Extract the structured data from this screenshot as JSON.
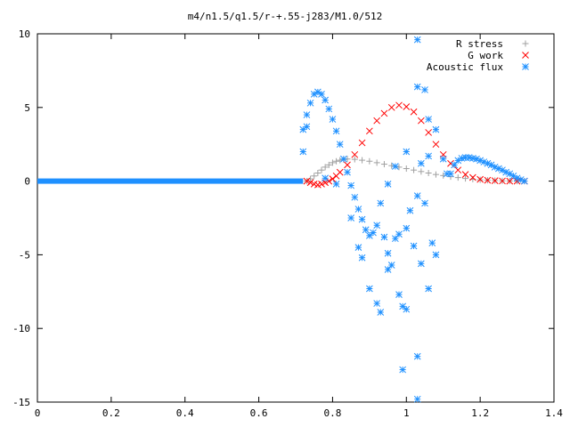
{
  "chart_data": {
    "type": "scatter",
    "title": "m4/n1.5/q1.5/r-+.55-j283/M1.0/512",
    "xlim": [
      0,
      1.4
    ],
    "ylim": [
      -15,
      10
    ],
    "x_ticks": [
      "0",
      "0.2",
      "0.4",
      "0.6",
      "0.8",
      "1",
      "1.2",
      "1.4"
    ],
    "y_ticks": [
      "10",
      "5",
      "0",
      "-5",
      "-10",
      "-15"
    ],
    "legend_position": "top-right",
    "series": [
      {
        "name": "R stress",
        "marker": "plus",
        "color": "#a0a0a0",
        "points": [
          [
            0.73,
            0.0
          ],
          [
            0.74,
            0.15
          ],
          [
            0.75,
            0.35
          ],
          [
            0.76,
            0.55
          ],
          [
            0.77,
            0.75
          ],
          [
            0.78,
            0.95
          ],
          [
            0.79,
            1.1
          ],
          [
            0.8,
            1.25
          ],
          [
            0.81,
            1.35
          ],
          [
            0.82,
            1.42
          ],
          [
            0.83,
            1.47
          ],
          [
            0.84,
            1.5
          ],
          [
            0.86,
            1.48
          ],
          [
            0.88,
            1.42
          ],
          [
            0.9,
            1.35
          ],
          [
            0.92,
            1.25
          ],
          [
            0.94,
            1.15
          ],
          [
            0.96,
            1.05
          ],
          [
            0.98,
            0.95
          ],
          [
            1.0,
            0.85
          ],
          [
            1.02,
            0.75
          ],
          [
            1.04,
            0.65
          ],
          [
            1.06,
            0.55
          ],
          [
            1.08,
            0.45
          ],
          [
            1.1,
            0.38
          ],
          [
            1.12,
            0.3
          ],
          [
            1.14,
            0.24
          ],
          [
            1.16,
            0.18
          ],
          [
            1.18,
            0.13
          ],
          [
            1.2,
            0.09
          ],
          [
            1.22,
            0.06
          ],
          [
            1.24,
            0.04
          ],
          [
            1.26,
            0.02
          ],
          [
            1.28,
            0.01
          ],
          [
            1.3,
            0.0
          ],
          [
            1.32,
            0.0
          ]
        ]
      },
      {
        "name": "G work",
        "marker": "cross",
        "color": "#ff0000",
        "points": [
          [
            0.73,
            0.0
          ],
          [
            0.74,
            -0.1
          ],
          [
            0.75,
            -0.2
          ],
          [
            0.76,
            -0.25
          ],
          [
            0.77,
            -0.2
          ],
          [
            0.78,
            -0.1
          ],
          [
            0.79,
            0.0
          ],
          [
            0.8,
            0.15
          ],
          [
            0.81,
            0.35
          ],
          [
            0.82,
            0.6
          ],
          [
            0.84,
            1.1
          ],
          [
            0.86,
            1.8
          ],
          [
            0.88,
            2.6
          ],
          [
            0.9,
            3.4
          ],
          [
            0.92,
            4.1
          ],
          [
            0.94,
            4.6
          ],
          [
            0.96,
            5.0
          ],
          [
            0.98,
            5.15
          ],
          [
            1.0,
            5.05
          ],
          [
            1.02,
            4.7
          ],
          [
            1.04,
            4.1
          ],
          [
            1.06,
            3.3
          ],
          [
            1.08,
            2.5
          ],
          [
            1.1,
            1.8
          ],
          [
            1.12,
            1.2
          ],
          [
            1.14,
            0.75
          ],
          [
            1.16,
            0.45
          ],
          [
            1.18,
            0.25
          ],
          [
            1.2,
            0.12
          ],
          [
            1.22,
            0.06
          ],
          [
            1.24,
            0.03
          ],
          [
            1.26,
            0.01
          ],
          [
            1.28,
            0.0
          ],
          [
            1.3,
            0.0
          ],
          [
            1.32,
            0.0
          ]
        ]
      },
      {
        "name": "Acoustic flux",
        "marker": "star",
        "color": "#1e90ff",
        "baseline_from": 0.0,
        "baseline_to": 0.72,
        "points": [
          [
            0.72,
            2.0
          ],
          [
            0.72,
            3.5
          ],
          [
            0.73,
            4.5
          ],
          [
            0.74,
            5.3
          ],
          [
            0.75,
            5.9
          ],
          [
            0.76,
            6.05
          ],
          [
            0.77,
            5.9
          ],
          [
            0.78,
            5.5
          ],
          [
            0.79,
            4.9
          ],
          [
            0.8,
            4.2
          ],
          [
            0.81,
            3.4
          ],
          [
            0.82,
            2.5
          ],
          [
            0.83,
            1.5
          ],
          [
            0.84,
            0.6
          ],
          [
            0.85,
            -0.3
          ],
          [
            0.86,
            -1.1
          ],
          [
            0.87,
            -1.9
          ],
          [
            0.88,
            -2.6
          ],
          [
            0.89,
            -3.3
          ],
          [
            0.9,
            -3.7
          ],
          [
            0.91,
            -3.5
          ],
          [
            0.92,
            -3.0
          ],
          [
            0.73,
            3.7
          ],
          [
            0.78,
            0.2
          ],
          [
            0.81,
            -0.2
          ],
          [
            0.85,
            -2.5
          ],
          [
            0.87,
            -4.5
          ],
          [
            0.88,
            -5.2
          ],
          [
            0.9,
            -7.3
          ],
          [
            0.92,
            -8.3
          ],
          [
            0.93,
            -8.9
          ],
          [
            0.95,
            -6.0
          ],
          [
            0.96,
            -5.7
          ],
          [
            0.98,
            -7.7
          ],
          [
            0.99,
            -8.5
          ],
          [
            1.0,
            -8.7
          ],
          [
            0.99,
            -12.8
          ],
          [
            1.03,
            -11.9
          ],
          [
            1.03,
            -14.8
          ],
          [
            0.94,
            -3.8
          ],
          [
            0.95,
            -4.9
          ],
          [
            0.97,
            -3.9
          ],
          [
            0.98,
            -3.6
          ],
          [
            1.0,
            -3.2
          ],
          [
            1.02,
            -4.4
          ],
          [
            1.04,
            -5.6
          ],
          [
            1.06,
            -7.3
          ],
          [
            1.07,
            -4.2
          ],
          [
            1.01,
            -2.0
          ],
          [
            1.03,
            -1.0
          ],
          [
            1.05,
            -1.5
          ],
          [
            1.08,
            -5.0
          ],
          [
            0.93,
            -1.5
          ],
          [
            0.95,
            -0.2
          ],
          [
            0.97,
            1.0
          ],
          [
            1.0,
            2.0
          ],
          [
            1.04,
            1.2
          ],
          [
            1.06,
            1.7
          ],
          [
            1.03,
            9.6
          ],
          [
            1.03,
            6.4
          ],
          [
            1.05,
            6.2
          ],
          [
            1.06,
            4.2
          ],
          [
            1.08,
            3.5
          ],
          [
            1.1,
            1.5
          ],
          [
            1.11,
            0.5
          ],
          [
            1.12,
            0.5
          ],
          [
            1.13,
            1.1
          ],
          [
            1.14,
            1.4
          ],
          [
            1.15,
            1.55
          ],
          [
            1.16,
            1.6
          ],
          [
            1.17,
            1.6
          ],
          [
            1.18,
            1.55
          ],
          [
            1.19,
            1.5
          ],
          [
            1.2,
            1.4
          ],
          [
            1.21,
            1.3
          ],
          [
            1.22,
            1.2
          ],
          [
            1.23,
            1.1
          ],
          [
            1.24,
            0.95
          ],
          [
            1.25,
            0.85
          ],
          [
            1.26,
            0.75
          ],
          [
            1.27,
            0.6
          ],
          [
            1.28,
            0.5
          ],
          [
            1.29,
            0.35
          ],
          [
            1.3,
            0.2
          ],
          [
            1.31,
            0.1
          ],
          [
            1.32,
            0.0
          ]
        ]
      }
    ]
  }
}
